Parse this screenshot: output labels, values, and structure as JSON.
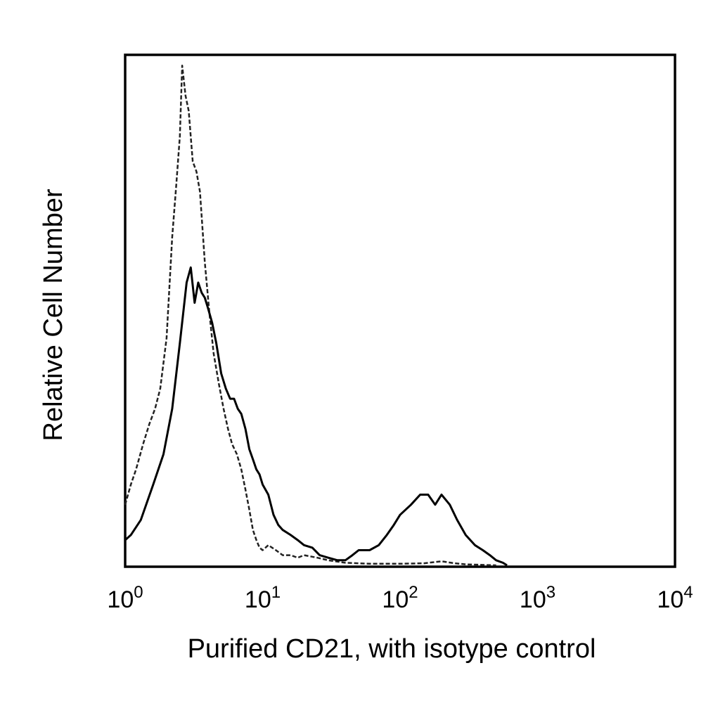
{
  "chart_data": {
    "type": "area",
    "xlabel": "Purified CD21, with isotype control",
    "ylabel": "Relative Cell Number",
    "xscale": "log",
    "xlim": [
      1,
      10000
    ],
    "ylim": [
      0,
      1
    ],
    "grid": false,
    "x_ticks": [
      {
        "base": "10",
        "exp": "0",
        "value": 1
      },
      {
        "base": "10",
        "exp": "1",
        "value": 10
      },
      {
        "base": "10",
        "exp": "2",
        "value": 100
      },
      {
        "base": "10",
        "exp": "3",
        "value": 1000
      },
      {
        "base": "10",
        "exp": "4",
        "value": 10000
      }
    ],
    "series": [
      {
        "style": "dashed",
        "color": "#222222",
        "x": [
          1.0,
          1.1,
          1.2,
          1.35,
          1.5,
          1.65,
          1.8,
          2.0,
          2.2,
          2.35,
          2.5,
          2.6,
          2.75,
          2.9,
          3.1,
          3.3,
          3.5,
          3.8,
          4.1,
          4.4,
          4.8,
          5.2,
          5.6,
          6.0,
          6.5,
          7.0,
          7.5,
          8.0,
          8.5,
          9.0,
          9.5,
          10.0,
          11.0,
          12.5,
          14.0,
          16.0,
          18.0,
          20.0,
          25.0,
          30.0,
          40.0,
          60.0,
          100.0,
          150.0,
          200.0,
          250.0,
          300.0,
          500.0
        ],
        "y": [
          0.12,
          0.16,
          0.19,
          0.24,
          0.28,
          0.31,
          0.35,
          0.45,
          0.65,
          0.75,
          0.85,
          0.99,
          0.93,
          0.9,
          0.8,
          0.78,
          0.74,
          0.6,
          0.5,
          0.42,
          0.36,
          0.31,
          0.27,
          0.24,
          0.22,
          0.19,
          0.15,
          0.11,
          0.07,
          0.05,
          0.035,
          0.03,
          0.04,
          0.03,
          0.02,
          0.02,
          0.015,
          0.02,
          0.015,
          0.01,
          0.005,
          0.003,
          0.003,
          0.004,
          0.008,
          0.004,
          0.002,
          0.0
        ]
      },
      {
        "style": "solid",
        "color": "#000000",
        "x": [
          1.0,
          1.1,
          1.3,
          1.6,
          1.9,
          2.2,
          2.5,
          2.8,
          3.0,
          3.2,
          3.4,
          3.6,
          3.8,
          4.0,
          4.3,
          4.6,
          5.0,
          5.4,
          5.8,
          6.2,
          6.6,
          7.0,
          7.5,
          8.0,
          8.5,
          9.0,
          9.5,
          10.0,
          11.0,
          12.0,
          13.0,
          14.0,
          16.0,
          18.0,
          20.0,
          23.0,
          26.0,
          30.0,
          35.0,
          40.0,
          45.0,
          50.0,
          60.0,
          70.0,
          80.0,
          90.0,
          100.0,
          120.0,
          140.0,
          160.0,
          180.0,
          200.0,
          230.0,
          260.0,
          300.0,
          350.0,
          400.0,
          450.0,
          500.0,
          560.0,
          600.0
        ],
        "y": [
          0.05,
          0.06,
          0.09,
          0.16,
          0.22,
          0.31,
          0.44,
          0.56,
          0.59,
          0.52,
          0.56,
          0.54,
          0.53,
          0.51,
          0.48,
          0.44,
          0.38,
          0.35,
          0.33,
          0.33,
          0.31,
          0.3,
          0.27,
          0.23,
          0.21,
          0.19,
          0.18,
          0.16,
          0.14,
          0.1,
          0.08,
          0.07,
          0.06,
          0.05,
          0.04,
          0.035,
          0.02,
          0.015,
          0.01,
          0.01,
          0.02,
          0.03,
          0.03,
          0.04,
          0.06,
          0.08,
          0.1,
          0.12,
          0.14,
          0.14,
          0.12,
          0.14,
          0.12,
          0.09,
          0.06,
          0.04,
          0.03,
          0.02,
          0.01,
          0.005,
          0.0
        ]
      }
    ]
  }
}
